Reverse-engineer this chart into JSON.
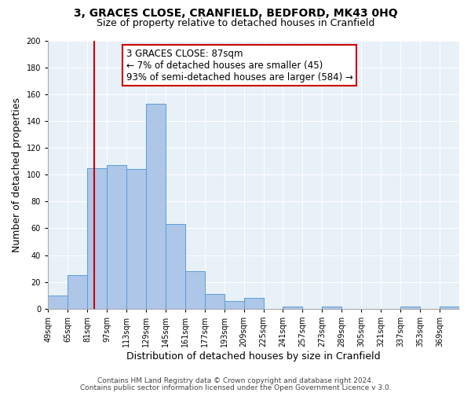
{
  "title": "3, GRACES CLOSE, CRANFIELD, BEDFORD, MK43 0HQ",
  "subtitle": "Size of property relative to detached houses in Cranfield",
  "xlabel": "Distribution of detached houses by size in Cranfield",
  "ylabel": "Number of detached properties",
  "bin_labels": [
    "49sqm",
    "65sqm",
    "81sqm",
    "97sqm",
    "113sqm",
    "129sqm",
    "145sqm",
    "161sqm",
    "177sqm",
    "193sqm",
    "209sqm",
    "225sqm",
    "241sqm",
    "257sqm",
    "273sqm",
    "289sqm",
    "305sqm",
    "321sqm",
    "337sqm",
    "353sqm",
    "369sqm"
  ],
  "bar_values": [
    10,
    25,
    105,
    107,
    104,
    153,
    63,
    28,
    11,
    6,
    8,
    0,
    2,
    0,
    2,
    0,
    0,
    0,
    2,
    0,
    2
  ],
  "bin_edges": [
    49,
    65,
    81,
    97,
    113,
    129,
    145,
    161,
    177,
    193,
    209,
    225,
    241,
    257,
    273,
    289,
    305,
    321,
    337,
    353,
    369,
    385
  ],
  "bar_color": "#aec6e8",
  "bar_edge_color": "#5a9fd4",
  "vline_x": 87,
  "vline_color": "#cc0000",
  "annotation_text_line1": "3 GRACES CLOSE: 87sqm",
  "annotation_text_line2": "← 7% of detached houses are smaller (45)",
  "annotation_text_line3": "93% of semi-detached houses are larger (584) →",
  "annotation_box_color": "#ffffff",
  "annotation_box_edge_color": "#cc0000",
  "ylim": [
    0,
    200
  ],
  "yticks": [
    0,
    20,
    40,
    60,
    80,
    100,
    120,
    140,
    160,
    180,
    200
  ],
  "bg_color": "#e8f0f8",
  "grid_color": "#d0dce8",
  "footer_line1": "Contains HM Land Registry data © Crown copyright and database right 2024.",
  "footer_line2": "Contains public sector information licensed under the Open Government Licence v 3.0.",
  "title_fontsize": 10,
  "subtitle_fontsize": 9,
  "axis_label_fontsize": 9,
  "tick_fontsize": 7,
  "annotation_fontsize": 8.5,
  "footer_fontsize": 6.5
}
